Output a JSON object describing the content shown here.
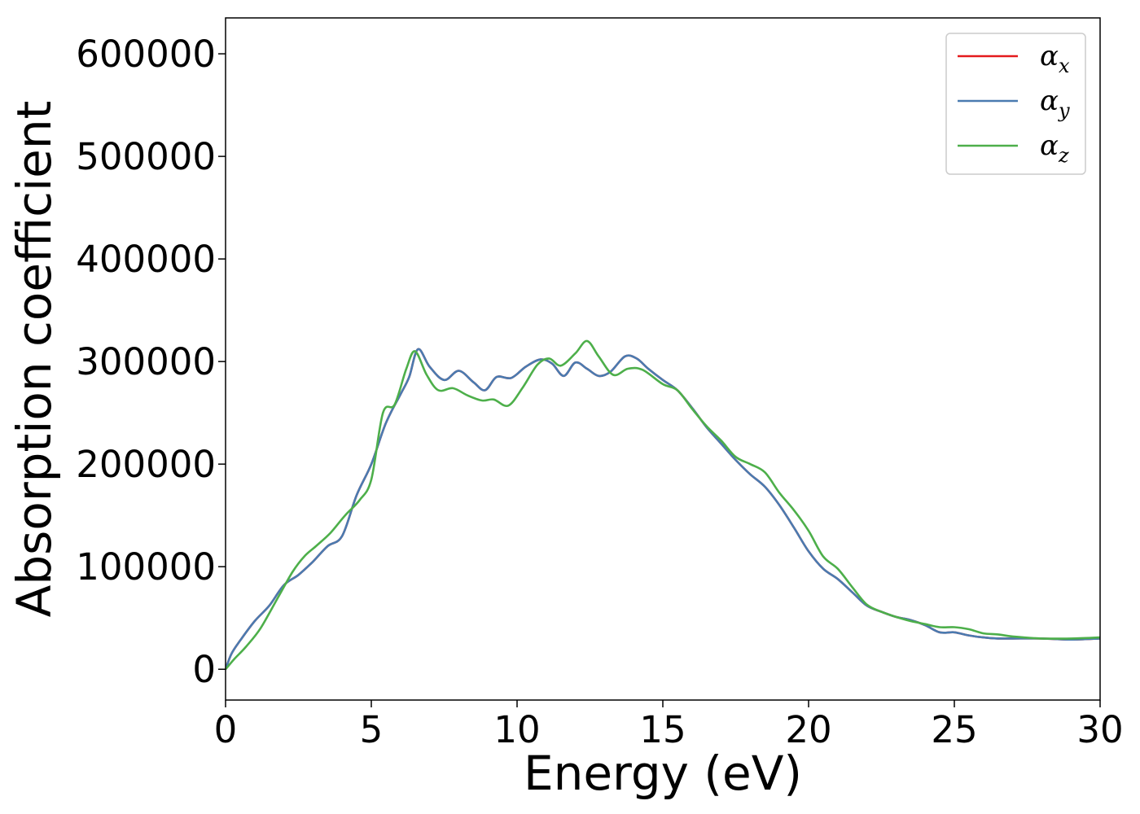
{
  "chart_data": {
    "type": "line",
    "title": "",
    "xlabel": "Energy (eV)",
    "ylabel": "Absorption coefficient",
    "xlim": [
      0,
      30
    ],
    "ylim": [
      -30000,
      635000
    ],
    "xticks": [
      0,
      5,
      10,
      15,
      20,
      25,
      30
    ],
    "yticks": [
      0,
      100000,
      200000,
      300000,
      400000,
      500000,
      600000
    ],
    "grid": false,
    "legend_position": "top-right",
    "series": [
      {
        "name": "αx",
        "symbol": "α",
        "sub": "x",
        "color": "#e41a1c",
        "x": [
          0,
          0.2,
          0.5,
          1,
          1.5,
          2,
          2.5,
          3,
          3.5,
          4,
          4.5,
          5,
          5.5,
          6,
          6.3,
          6.6,
          7,
          7.5,
          8,
          8.5,
          8.9,
          9.3,
          9.8,
          10.3,
          10.8,
          11.2,
          11.6,
          12,
          12.4,
          12.8,
          13.2,
          13.7,
          14.1,
          14.5,
          15,
          15.5,
          16,
          16.5,
          17,
          17.5,
          18,
          18.5,
          19,
          19.5,
          20,
          20.5,
          21,
          21.5,
          22,
          22.5,
          23,
          23.5,
          24,
          24.5,
          25,
          25.5,
          26,
          26.5,
          27,
          28,
          29,
          30
        ],
        "y": [
          0,
          15000,
          28000,
          47000,
          62000,
          82000,
          92000,
          105000,
          120000,
          130000,
          170000,
          200000,
          240000,
          268000,
          285000,
          312000,
          295000,
          282000,
          291000,
          280000,
          272000,
          285000,
          284000,
          295000,
          302000,
          298000,
          286000,
          299000,
          293000,
          286000,
          290000,
          305000,
          303000,
          293000,
          282000,
          272000,
          255000,
          236000,
          220000,
          204000,
          190000,
          178000,
          160000,
          138000,
          115000,
          98000,
          88000,
          75000,
          62000,
          56000,
          51000,
          48000,
          43000,
          36000,
          36000,
          33000,
          31000,
          30000,
          30000,
          30000,
          29000,
          30000
        ]
      },
      {
        "name": "αy",
        "symbol": "α",
        "sub": "y",
        "color": "#4a7bb0",
        "x": [
          0,
          0.2,
          0.5,
          1,
          1.5,
          2,
          2.5,
          3,
          3.5,
          4,
          4.5,
          5,
          5.5,
          6,
          6.3,
          6.6,
          7,
          7.5,
          8,
          8.5,
          8.9,
          9.3,
          9.8,
          10.3,
          10.8,
          11.2,
          11.6,
          12,
          12.4,
          12.8,
          13.2,
          13.7,
          14.1,
          14.5,
          15,
          15.5,
          16,
          16.5,
          17,
          17.5,
          18,
          18.5,
          19,
          19.5,
          20,
          20.5,
          21,
          21.5,
          22,
          22.5,
          23,
          23.5,
          24,
          24.5,
          25,
          25.5,
          26,
          26.5,
          27,
          28,
          29,
          30
        ],
        "y": [
          0,
          15000,
          28000,
          47000,
          62000,
          82000,
          92000,
          105000,
          120000,
          130000,
          170000,
          200000,
          240000,
          268000,
          285000,
          312000,
          295000,
          282000,
          291000,
          280000,
          272000,
          285000,
          284000,
          295000,
          302000,
          298000,
          286000,
          299000,
          293000,
          286000,
          290000,
          305000,
          303000,
          293000,
          282000,
          272000,
          255000,
          236000,
          220000,
          204000,
          190000,
          178000,
          160000,
          138000,
          115000,
          98000,
          88000,
          75000,
          62000,
          56000,
          51000,
          48000,
          43000,
          36000,
          36000,
          33000,
          31000,
          30000,
          30000,
          30000,
          29000,
          30000
        ]
      },
      {
        "name": "αz",
        "symbol": "α",
        "sub": "z",
        "color": "#4daf4a",
        "x": [
          0,
          0.3,
          0.7,
          1.2,
          1.8,
          2.3,
          2.7,
          3.1,
          3.6,
          4.1,
          4.6,
          5,
          5.4,
          5.8,
          6.2,
          6.5,
          6.9,
          7.3,
          7.8,
          8.3,
          8.8,
          9.2,
          9.7,
          10.2,
          10.7,
          11.1,
          11.5,
          12,
          12.4,
          12.8,
          13.3,
          13.8,
          14.3,
          15,
          15.5,
          16,
          16.5,
          17,
          17.5,
          18,
          18.5,
          19,
          19.5,
          20,
          20.5,
          21,
          21.5,
          22,
          22.5,
          23,
          23.5,
          24,
          24.5,
          25,
          25.5,
          26,
          26.5,
          27,
          28,
          29,
          30
        ],
        "y": [
          0,
          10000,
          22000,
          40000,
          70000,
          95000,
          110000,
          120000,
          133000,
          150000,
          165000,
          185000,
          250000,
          258000,
          293000,
          310000,
          287000,
          272000,
          274000,
          267000,
          262000,
          263000,
          257000,
          275000,
          297000,
          303000,
          296000,
          308000,
          320000,
          305000,
          287000,
          293000,
          292000,
          278000,
          272000,
          254000,
          237000,
          223000,
          207000,
          200000,
          192000,
          172000,
          155000,
          135000,
          110000,
          98000,
          80000,
          63000,
          56000,
          51000,
          47000,
          44000,
          41000,
          41000,
          39000,
          35000,
          34000,
          32000,
          30000,
          30000,
          31000
        ]
      }
    ]
  }
}
